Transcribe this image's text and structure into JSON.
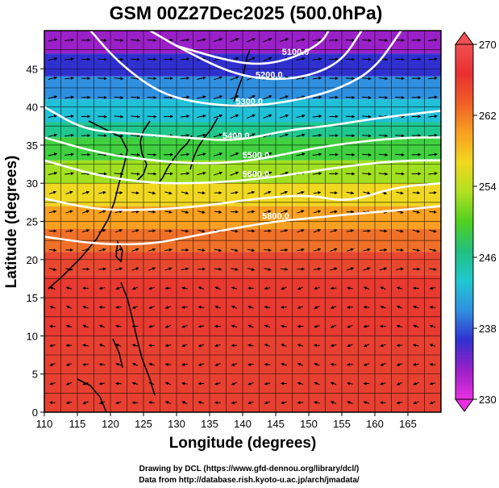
{
  "chart_data": {
    "type": "heatmap",
    "title": "GSM 00Z27Dec2025 (500.0hPa)",
    "xlabel": "Longitude (degrees)",
    "ylabel": "Latitude  (degrees)",
    "xlim": [
      110,
      170
    ],
    "ylim": [
      0,
      50
    ],
    "x_ticks": [
      110,
      115,
      120,
      125,
      130,
      135,
      140,
      145,
      150,
      155,
      160,
      165
    ],
    "y_ticks": [
      0,
      5,
      10,
      15,
      20,
      25,
      30,
      35,
      40,
      45
    ],
    "shading_variable": "temperature (K)",
    "colorbar": {
      "min": 230,
      "max": 270,
      "ticks": [
        230,
        238,
        246,
        254,
        262,
        270
      ],
      "colors": [
        "#e830e0",
        "#9a20c8",
        "#3030d0",
        "#3090e0",
        "#20c8d0",
        "#20c080",
        "#50d020",
        "#b0e020",
        "#f0d820",
        "#f8a020",
        "#f06028",
        "#e83030",
        "#f05050"
      ]
    },
    "contours": {
      "variable": "geopotential height (m)",
      "interval": 100,
      "levels": [
        {
          "value": 5100,
          "label": "5100.0",
          "points": [
            [
              130,
              48
            ],
            [
              138,
              46
            ],
            [
              143,
              45.5
            ],
            [
              148,
              46.5
            ],
            [
              152,
              48.5
            ],
            [
              153,
              50
            ]
          ]
        },
        {
          "value": 5200,
          "label": "5200.0",
          "points": [
            [
              126,
              50
            ],
            [
              131,
              47.5
            ],
            [
              138,
              44.5
            ],
            [
              144,
              43.5
            ],
            [
              150,
              44
            ],
            [
              155,
              46
            ],
            [
              158,
              50
            ]
          ]
        },
        {
          "value": 5300,
          "label": "5300.0",
          "points": [
            [
              117,
              50
            ],
            [
              121,
              46
            ],
            [
              127,
              42
            ],
            [
              133,
              40.5
            ],
            [
              141,
              40
            ],
            [
              149,
              41
            ],
            [
              155,
              42.5
            ],
            [
              160,
              45
            ],
            [
              164,
              50
            ]
          ]
        },
        {
          "value": 5400,
          "label": "5400.0",
          "points": [
            [
              110,
              40
            ],
            [
              116,
              37
            ],
            [
              123,
              36.5
            ],
            [
              131,
              36
            ],
            [
              139,
              35.5
            ],
            [
              147,
              37
            ],
            [
              153,
              37.5
            ],
            [
              160,
              38.5
            ],
            [
              170,
              39.5
            ]
          ]
        },
        {
          "value": 5500,
          "label": "5500.0",
          "points": [
            [
              110,
              36
            ],
            [
              118,
              34
            ],
            [
              126,
              33
            ],
            [
              134,
              32.5
            ],
            [
              142,
              33
            ],
            [
              150,
              34.5
            ],
            [
              158,
              35.5
            ],
            [
              165,
              36
            ],
            [
              170,
              36
            ]
          ]
        },
        {
          "value": 5600,
          "label": "5600.0",
          "points": [
            [
              110,
              33
            ],
            [
              118,
              31
            ],
            [
              126,
              30
            ],
            [
              134,
              30
            ],
            [
              142,
              30.5
            ],
            [
              150,
              31.5
            ],
            [
              158,
              32.5
            ],
            [
              165,
              33
            ],
            [
              170,
              33
            ]
          ]
        },
        {
          "value": 5700,
          "label": "",
          "points": [
            [
              110,
              28
            ],
            [
              118,
              26.5
            ],
            [
              126,
              26.5
            ],
            [
              134,
              27
            ],
            [
              142,
              28
            ],
            [
              150,
              28.5
            ],
            [
              156,
              27.5
            ],
            [
              163,
              29.5
            ],
            [
              170,
              30
            ]
          ]
        },
        {
          "value": 5800,
          "label": "5800.0",
          "points": [
            [
              110,
              23
            ],
            [
              118,
              22
            ],
            [
              126,
              22
            ],
            [
              132,
              23
            ],
            [
              138,
              24
            ],
            [
              145,
              25
            ],
            [
              151,
              25.5
            ],
            [
              157,
              26
            ],
            [
              164,
              26.5
            ],
            [
              170,
              27
            ]
          ]
        }
      ]
    },
    "vectors": {
      "variable": "wind",
      "grid_step_degrees": 2.5
    }
  },
  "credits": {
    "line1": "Drawing by DCL (https://www.gfd-dennou.org/library/dcl/)",
    "line2": "Data from http://database.rish.kyoto-u.ac.jp/arch/jmadata/"
  }
}
